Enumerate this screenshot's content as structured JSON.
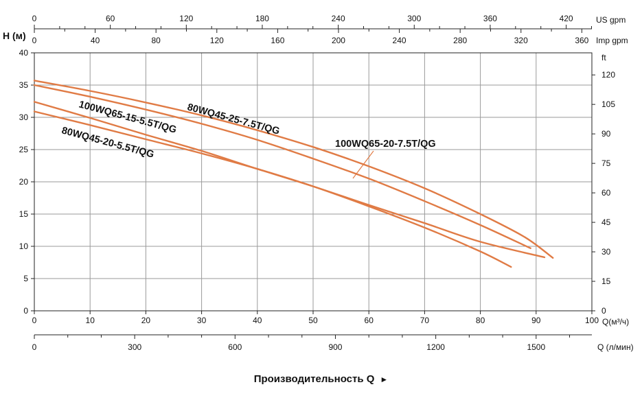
{
  "chart_data": {
    "type": "line",
    "title": "",
    "ylabel": "H (м)",
    "xlabel": "Производительность Q",
    "xlabel_arrow": "►",
    "x_unit": "Q(м³/ч)",
    "xlim": [
      0,
      100
    ],
    "ylim": [
      0,
      40
    ],
    "grid": true,
    "x_ticks": [
      0,
      10,
      20,
      30,
      40,
      50,
      60,
      70,
      80,
      90,
      100
    ],
    "y_ticks": [
      0,
      5,
      10,
      15,
      20,
      25,
      30,
      35,
      40
    ],
    "secondary_axes": {
      "ft": {
        "label": "ft",
        "ticks": [
          0,
          15,
          30,
          45,
          60,
          75,
          90,
          105,
          120
        ]
      },
      "lpm": {
        "label": "Q (л/мин)",
        "ticks": [
          0,
          300,
          600,
          900,
          1200,
          1500
        ]
      },
      "us_gpm": {
        "label": "US gpm",
        "ticks": [
          0,
          60,
          120,
          180,
          240,
          300,
          360,
          420
        ]
      },
      "imp_gpm": {
        "label": "Imp gpm",
        "ticks": [
          0,
          40,
          80,
          120,
          160,
          200,
          240,
          280,
          320,
          360
        ]
      }
    },
    "series": [
      {
        "name": "80WQ45-25-7.5T/QG",
        "color": "#e07b45",
        "x": [
          0,
          10,
          20,
          30,
          40,
          50,
          60,
          70,
          80,
          88,
          93
        ],
        "y": [
          35.7,
          34.1,
          32.3,
          30.3,
          28.0,
          25.4,
          22.4,
          19.0,
          15.0,
          11.4,
          8.2
        ]
      },
      {
        "name": "100WQ65-20-7.5T/QG",
        "color": "#e07b45",
        "x": [
          0,
          10,
          20,
          30,
          40,
          50,
          60,
          70,
          80,
          89
        ],
        "y": [
          35.0,
          33.2,
          31.2,
          29.0,
          26.5,
          23.6,
          20.5,
          17.0,
          13.3,
          9.7
        ]
      },
      {
        "name": "100WQ65-15-5.5T/QG",
        "color": "#e07b45",
        "x": [
          0,
          10,
          20,
          30,
          40,
          50,
          60,
          70,
          80,
          91.5
        ],
        "y": [
          32.4,
          29.9,
          27.3,
          24.8,
          22.0,
          19.3,
          16.4,
          13.6,
          10.7,
          8.3
        ]
      },
      {
        "name": "80WQ45-20-5.5T/QG",
        "color": "#e07b45",
        "x": [
          0,
          10,
          20,
          30,
          40,
          50,
          60,
          70,
          80,
          85.5
        ],
        "y": [
          30.9,
          28.8,
          26.6,
          24.4,
          22.0,
          19.3,
          16.2,
          12.9,
          9.2,
          6.8
        ]
      }
    ]
  }
}
